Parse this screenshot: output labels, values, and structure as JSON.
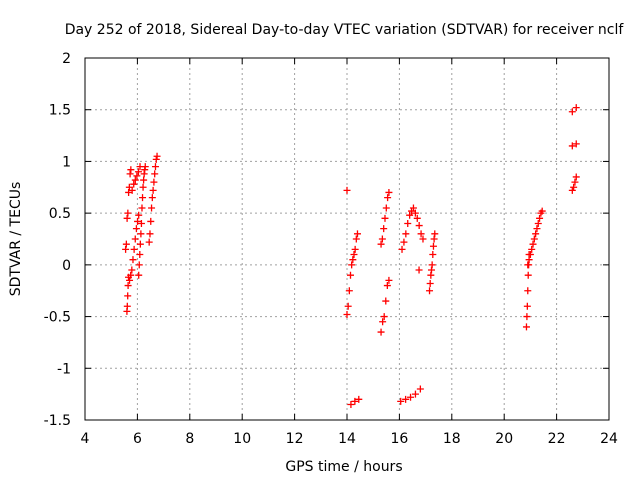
{
  "chart_data": {
    "type": "scatter",
    "title": "Day 252 of 2018, Sidereal Day-to-day VTEC variation (SDTVAR) for receiver nclf",
    "xlabel": "GPS time / hours",
    "ylabel": "SDTVAR / TECUs",
    "xlim": [
      4,
      24
    ],
    "ylim": [
      -1.5,
      2
    ],
    "xticks": [
      4,
      6,
      8,
      10,
      12,
      14,
      16,
      18,
      20,
      22,
      24
    ],
    "yticks": [
      -1.5,
      -1,
      -0.5,
      0,
      0.5,
      1,
      1.5,
      2
    ],
    "xtick_labels": [
      "4",
      "6",
      "8",
      "10",
      "12",
      "14",
      "16",
      "18",
      "20",
      "22",
      "24"
    ],
    "ytick_labels": [
      "-1.5",
      "-1",
      "-0.5",
      "0",
      "0.5",
      "1",
      "1.5",
      "2"
    ],
    "grid": true,
    "marker": "+",
    "series": [
      {
        "name": "SDTVAR",
        "color": "#ff0000",
        "segments": [
          {
            "x0": 5.6,
            "x1": 5.66,
            "y": [
              -0.45,
              -0.4,
              -0.3,
              -0.2,
              -0.12
            ]
          },
          {
            "x0": 5.55,
            "x1": 5.75,
            "y": [
              0.15,
              0.2,
              0.45,
              0.5,
              0.7,
              0.75,
              0.88,
              0.92
            ]
          },
          {
            "x0": 5.7,
            "x1": 6.05,
            "y": [
              -0.15,
              -0.1,
              -0.05,
              0.05,
              0.15,
              0.25,
              0.35,
              0.42,
              0.48
            ]
          },
          {
            "x0": 5.8,
            "x1": 6.1,
            "y": [
              0.72,
              0.78,
              0.82,
              0.86,
              0.9,
              0.95
            ]
          },
          {
            "x0": 6.05,
            "x1": 6.3,
            "y": [
              -0.1,
              0.0,
              0.1,
              0.2,
              0.3,
              0.4,
              0.55,
              0.65,
              0.75,
              0.82,
              0.88,
              0.92,
              0.95
            ]
          },
          {
            "x0": 6.45,
            "x1": 6.75,
            "y": [
              0.22,
              0.3,
              0.42,
              0.55,
              0.65,
              0.72,
              0.8,
              0.88,
              0.95,
              1.02,
              1.05
            ]
          },
          {
            "x0": 14.0,
            "x1": 14.05,
            "y": [
              0.72
            ]
          },
          {
            "x0": 14.0,
            "x1": 14.4,
            "y": [
              -0.48,
              -0.4,
              -0.25,
              -0.1,
              0.0,
              0.05,
              0.1,
              0.15,
              0.25,
              0.3
            ]
          },
          {
            "x0": 14.15,
            "x1": 14.45,
            "y": [
              -1.35,
              -1.32,
              -1.3
            ]
          },
          {
            "x0": 15.3,
            "x1": 15.6,
            "y": [
              -0.65,
              -0.55,
              -0.5,
              -0.35,
              -0.2,
              -0.15
            ]
          },
          {
            "x0": 15.3,
            "x1": 15.6,
            "y": [
              0.2,
              0.25,
              0.35,
              0.45,
              0.55,
              0.65,
              0.7
            ]
          },
          {
            "x0": 16.05,
            "x1": 16.8,
            "y": [
              -1.32,
              -1.3,
              -1.28,
              -1.25,
              -1.2
            ]
          },
          {
            "x0": 16.1,
            "x1": 16.9,
            "y": [
              0.15,
              0.22,
              0.3,
              0.4,
              0.48,
              0.52,
              0.55,
              0.5,
              0.45,
              0.38,
              0.3,
              0.25
            ]
          },
          {
            "x0": 16.75,
            "x1": 16.8,
            "y": [
              -0.05
            ]
          },
          {
            "x0": 17.15,
            "x1": 17.35,
            "y": [
              -0.25,
              -0.18,
              -0.1,
              -0.05,
              0.0,
              0.1,
              0.18,
              0.25,
              0.3
            ]
          },
          {
            "x0": 20.85,
            "x1": 20.95,
            "y": [
              -0.6,
              -0.5,
              -0.4,
              -0.25,
              -0.1,
              0.0,
              0.1
            ]
          },
          {
            "x0": 20.9,
            "x1": 21.45,
            "y": [
              0.0,
              0.05,
              0.1,
              0.15,
              0.2,
              0.25,
              0.3,
              0.35,
              0.4,
              0.45,
              0.5,
              0.52
            ]
          },
          {
            "x0": 22.6,
            "x1": 22.75,
            "y": [
              0.72,
              0.75,
              0.8,
              0.85
            ]
          },
          {
            "x0": 22.6,
            "x1": 22.75,
            "y": [
              1.15,
              1.17
            ]
          },
          {
            "x0": 22.6,
            "x1": 22.75,
            "y": [
              1.48,
              1.52
            ]
          }
        ]
      }
    ]
  }
}
